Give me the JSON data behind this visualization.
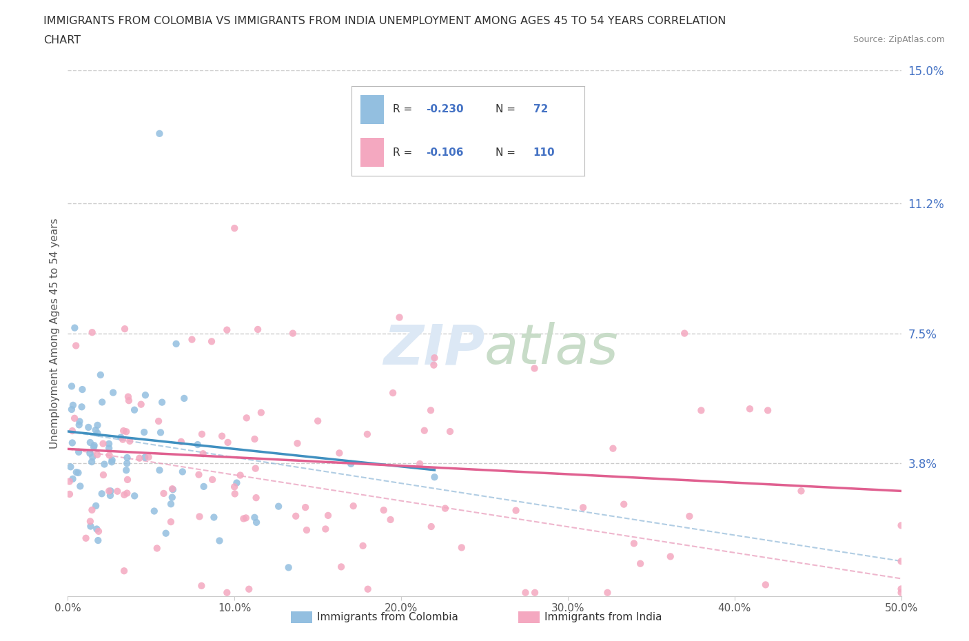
{
  "title_line1": "IMMIGRANTS FROM COLOMBIA VS IMMIGRANTS FROM INDIA UNEMPLOYMENT AMONG AGES 45 TO 54 YEARS CORRELATION",
  "title_line2": "CHART",
  "source": "Source: ZipAtlas.com",
  "ylabel": "Unemployment Among Ages 45 to 54 years",
  "xlim": [
    0.0,
    0.5
  ],
  "ylim": [
    0.0,
    0.15
  ],
  "yticks": [
    0.0,
    0.038,
    0.075,
    0.112,
    0.15
  ],
  "ytick_labels": [
    "",
    "3.8%",
    "7.5%",
    "11.2%",
    "15.0%"
  ],
  "xticks": [
    0.0,
    0.1,
    0.2,
    0.3,
    0.4,
    0.5
  ],
  "xtick_labels": [
    "0.0%",
    "10.0%",
    "20.0%",
    "30.0%",
    "40.0%",
    "50.0%"
  ],
  "colombia_color": "#93BFE0",
  "india_color": "#F4A8C0",
  "colombia_line_color": "#4090C0",
  "india_line_color": "#E06090",
  "colombia_dash_color": "#90B8D8",
  "india_dash_color": "#E898B8",
  "colombia_R": -0.23,
  "colombia_N": 72,
  "india_R": -0.106,
  "india_N": 110,
  "background_color": "#ffffff",
  "grid_color": "#cccccc",
  "axis_label_color": "#4472c4",
  "title_color": "#333333",
  "watermark_color": "#dce8f5",
  "legend_text_color": "#333333",
  "legend_val_color": "#4472c4"
}
